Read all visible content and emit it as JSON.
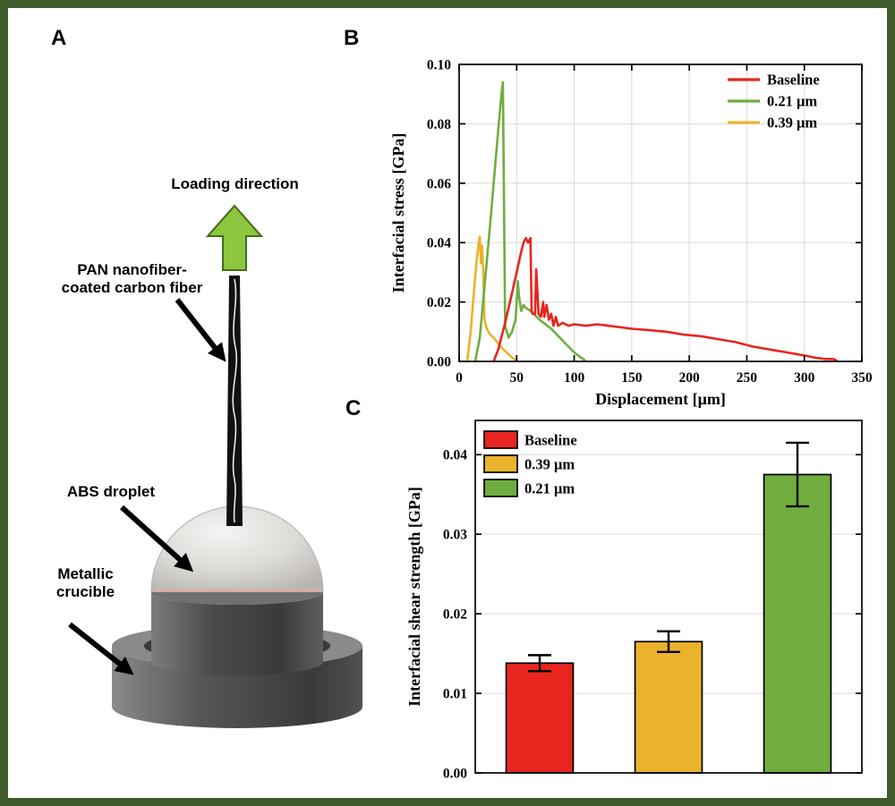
{
  "frame": {
    "border_color": "#3f5b2b",
    "background": "#ffffff"
  },
  "panels": {
    "a": {
      "label": "A",
      "annotations": {
        "loading_direction": "Loading direction",
        "fiber": "PAN nanofiber-\ncoated carbon fiber",
        "droplet": "ABS droplet",
        "crucible": "Metallic\ncrucible"
      }
    },
    "b": {
      "label": "B"
    },
    "c": {
      "label": "C"
    }
  },
  "colors": {
    "baseline": "#e8251f",
    "sample_021": "#70ad3f",
    "sample_039": "#eab32b",
    "grid": "#d9d9d9",
    "arrow_green": "#8dc63f"
  },
  "chart_data": [
    {
      "id": "stress-displacement",
      "type": "line",
      "title": "",
      "xlabel": "Displacement [μm]",
      "ylabel": "Interfacial stress [GPa]",
      "xlim": [
        0,
        350
      ],
      "ylim": [
        0,
        0.1
      ],
      "xticks": [
        0,
        50,
        100,
        150,
        200,
        250,
        300,
        350
      ],
      "xtick_labels": [
        "0",
        "50",
        "100",
        "150",
        "200",
        "250",
        "300",
        "350"
      ],
      "yticks": [
        0.0,
        0.02,
        0.04,
        0.06,
        0.08,
        0.1
      ],
      "ytick_labels": [
        "0.00",
        "0.02",
        "0.04",
        "0.06",
        "0.08",
        "0.10"
      ],
      "grid": true,
      "legend_position": "top-right",
      "series": [
        {
          "name": "Baseline",
          "color": "#e8251f",
          "points": [
            [
              30,
              0.0
            ],
            [
              34,
              0.004
            ],
            [
              40,
              0.013
            ],
            [
              46,
              0.023
            ],
            [
              50,
              0.03
            ],
            [
              54,
              0.037
            ],
            [
              56,
              0.04
            ],
            [
              58,
              0.0415
            ],
            [
              60,
              0.04
            ],
            [
              62,
              0.0415
            ],
            [
              63,
              0.017
            ],
            [
              64,
              0.016
            ],
            [
              66,
              0.016
            ],
            [
              67,
              0.031
            ],
            [
              68,
              0.024
            ],
            [
              69,
              0.016
            ],
            [
              71,
              0.015
            ],
            [
              73,
              0.02
            ],
            [
              74,
              0.015
            ],
            [
              76,
              0.019
            ],
            [
              78,
              0.014
            ],
            [
              80,
              0.016
            ],
            [
              82,
              0.012
            ],
            [
              84,
              0.015
            ],
            [
              86,
              0.012
            ],
            [
              90,
              0.013
            ],
            [
              95,
              0.012
            ],
            [
              100,
              0.0125
            ],
            [
              110,
              0.012
            ],
            [
              120,
              0.0125
            ],
            [
              130,
              0.012
            ],
            [
              140,
              0.0115
            ],
            [
              150,
              0.011
            ],
            [
              165,
              0.0105
            ],
            [
              180,
              0.01
            ],
            [
              195,
              0.009
            ],
            [
              210,
              0.0085
            ],
            [
              225,
              0.0075
            ],
            [
              240,
              0.0065
            ],
            [
              255,
              0.005
            ],
            [
              270,
              0.004
            ],
            [
              285,
              0.003
            ],
            [
              300,
              0.002
            ],
            [
              310,
              0.0012
            ],
            [
              318,
              0.0008
            ],
            [
              325,
              0.0008
            ],
            [
              328,
              0.0003
            ]
          ]
        },
        {
          "name": "0.21 μm",
          "color": "#70ad3f",
          "points": [
            [
              14,
              0.0
            ],
            [
              18,
              0.008
            ],
            [
              22,
              0.025
            ],
            [
              26,
              0.042
            ],
            [
              30,
              0.06
            ],
            [
              34,
              0.078
            ],
            [
              37,
              0.091
            ],
            [
              38,
              0.094
            ],
            [
              39,
              0.055
            ],
            [
              40,
              0.012
            ],
            [
              43,
              0.008
            ],
            [
              46,
              0.01
            ],
            [
              49,
              0.014
            ],
            [
              51,
              0.027
            ],
            [
              52,
              0.022
            ],
            [
              54,
              0.017
            ],
            [
              56,
              0.019
            ],
            [
              58,
              0.018
            ],
            [
              62,
              0.017
            ],
            [
              66,
              0.0155
            ],
            [
              70,
              0.014
            ],
            [
              75,
              0.0125
            ],
            [
              80,
              0.011
            ],
            [
              85,
              0.009
            ],
            [
              90,
              0.007
            ],
            [
              95,
              0.005
            ],
            [
              100,
              0.003
            ],
            [
              105,
              0.0015
            ],
            [
              109,
              0.0005
            ]
          ]
        },
        {
          "name": "0.39 μm",
          "color": "#eab32b",
          "points": [
            [
              7,
              0.0
            ],
            [
              10,
              0.01
            ],
            [
              13,
              0.024
            ],
            [
              15,
              0.033
            ],
            [
              17,
              0.04
            ],
            [
              18,
              0.042
            ],
            [
              19,
              0.033
            ],
            [
              20,
              0.039
            ],
            [
              21,
              0.03
            ],
            [
              22,
              0.014
            ],
            [
              24,
              0.011
            ],
            [
              27,
              0.009
            ],
            [
              30,
              0.008
            ],
            [
              33,
              0.0065
            ],
            [
              36,
              0.005
            ],
            [
              40,
              0.0035
            ],
            [
              44,
              0.002
            ],
            [
              47,
              0.001
            ],
            [
              50,
              0.0004
            ]
          ]
        }
      ]
    },
    {
      "id": "shear-strength",
      "type": "bar",
      "title": "",
      "xlabel": "",
      "ylabel": "Interfacial shear strength [GPa]",
      "ylim": [
        0,
        0.0443
      ],
      "yticks": [
        0.0,
        0.01,
        0.02,
        0.03,
        0.04
      ],
      "ytick_labels": [
        "0.00",
        "0.01",
        "0.02",
        "0.03",
        "0.04"
      ],
      "grid": true,
      "categories": [
        "Baseline",
        "0.39 μm",
        "0.21 μm"
      ],
      "values": [
        0.0138,
        0.0165,
        0.0375
      ],
      "errors": [
        0.001,
        0.0013,
        0.004
      ],
      "colors": [
        "#e8251f",
        "#eab32b",
        "#70ad3f"
      ],
      "legend_position": "top-left",
      "legend": [
        {
          "label": "Baseline",
          "color": "#e8251f"
        },
        {
          "label": "0.39 μm",
          "color": "#eab32b"
        },
        {
          "label": "0.21 μm",
          "color": "#70ad3f"
        }
      ]
    }
  ]
}
